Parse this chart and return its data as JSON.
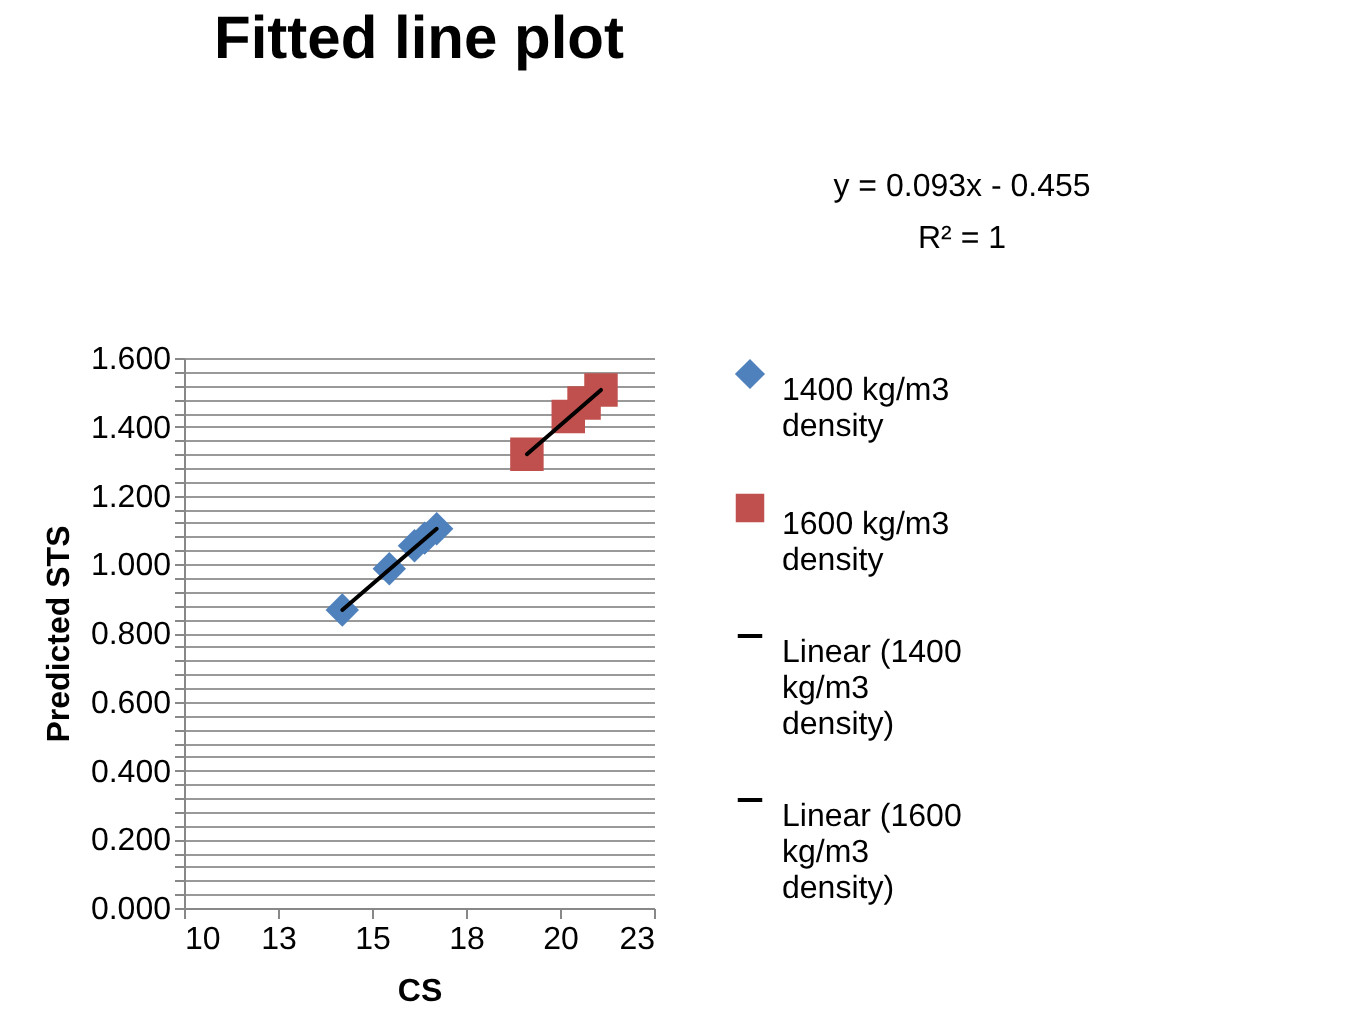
{
  "chart_data": {
    "type": "scatter",
    "title": "Fitted line plot",
    "xlabel": "CS",
    "ylabel": "Predicted STS",
    "annotations": [
      "y = 0.093x - 0.455",
      "R² = 1"
    ],
    "xlim": [
      10,
      22.5
    ],
    "xticks": [
      10,
      {
        "value": 12.5,
        "label": "13"
      },
      15,
      {
        "value": 17.5,
        "label": "18"
      },
      20,
      {
        "value": 22.5,
        "label": "23"
      }
    ],
    "ylim": [
      0,
      1.6
    ],
    "yticks": [
      {
        "value": 0,
        "label": "0.000"
      },
      {
        "value": 0.04,
        "label": null
      },
      {
        "value": 0.08,
        "label": null
      },
      {
        "value": 0.12,
        "label": null
      },
      {
        "value": 0.16,
        "label": null
      },
      {
        "value": 0.2,
        "label": "0.200"
      },
      {
        "value": 0.24,
        "label": null
      },
      {
        "value": 0.28,
        "label": null
      },
      {
        "value": 0.32,
        "label": null
      },
      {
        "value": 0.36,
        "label": null
      },
      {
        "value": 0.4,
        "label": "0.400"
      },
      {
        "value": 0.44,
        "label": null
      },
      {
        "value": 0.48,
        "label": null
      },
      {
        "value": 0.52,
        "label": null
      },
      {
        "value": 0.56,
        "label": null
      },
      {
        "value": 0.6,
        "label": "0.600"
      },
      {
        "value": 0.64,
        "label": null
      },
      {
        "value": 0.68,
        "label": null
      },
      {
        "value": 0.72,
        "label": null
      },
      {
        "value": 0.76,
        "label": null
      },
      {
        "value": 0.8,
        "label": "0.800"
      },
      {
        "value": 0.84,
        "label": null
      },
      {
        "value": 0.88,
        "label": null
      },
      {
        "value": 0.92,
        "label": null
      },
      {
        "value": 0.96,
        "label": null
      },
      {
        "value": 1.0,
        "label": "1.000"
      },
      {
        "value": 1.04,
        "label": null
      },
      {
        "value": 1.08,
        "label": null
      },
      {
        "value": 1.12,
        "label": null
      },
      {
        "value": 1.16,
        "label": null
      },
      {
        "value": 1.2,
        "label": "1.200"
      },
      {
        "value": 1.24,
        "label": null
      },
      {
        "value": 1.28,
        "label": null
      },
      {
        "value": 1.32,
        "label": null
      },
      {
        "value": 1.36,
        "label": null
      },
      {
        "value": 1.4,
        "label": "1.400"
      },
      {
        "value": 1.44,
        "label": null
      },
      {
        "value": 1.48,
        "label": null
      },
      {
        "value": 1.52,
        "label": null
      },
      {
        "value": 1.56,
        "label": null
      },
      {
        "value": 1.6,
        "label": "1.600"
      }
    ],
    "grid": "y",
    "legend": "right",
    "series": [
      {
        "name": "1400 kg/m3 density",
        "marker": "diamond",
        "color": "#4f81bd",
        "x": [
          14.21,
          15.46,
          16.13,
          16.4,
          16.72
        ],
        "values": [
          0.867,
          0.987,
          1.054,
          1.076,
          1.103
        ]
      },
      {
        "name": "1600 kg/m3 density",
        "marker": "square",
        "color": "#c0504d",
        "x": [
          19.12,
          20.22,
          20.64,
          21.09
        ],
        "values": [
          1.32,
          1.43,
          1.469,
          1.507
        ]
      },
      {
        "name": "Linear (1400 kg/m3 density)",
        "type": "line",
        "marker": "none",
        "line_style": "solid",
        "color": "#000000",
        "x": [
          14.21,
          16.72
        ],
        "values": [
          0.867,
          1.103
        ]
      },
      {
        "name": "Linear (1600 kg/m3 density)",
        "type": "line",
        "marker": "none",
        "line_style": "solid",
        "color": "#000000",
        "x": [
          19.12,
          21.09
        ],
        "values": [
          1.32,
          1.507
        ]
      }
    ]
  }
}
